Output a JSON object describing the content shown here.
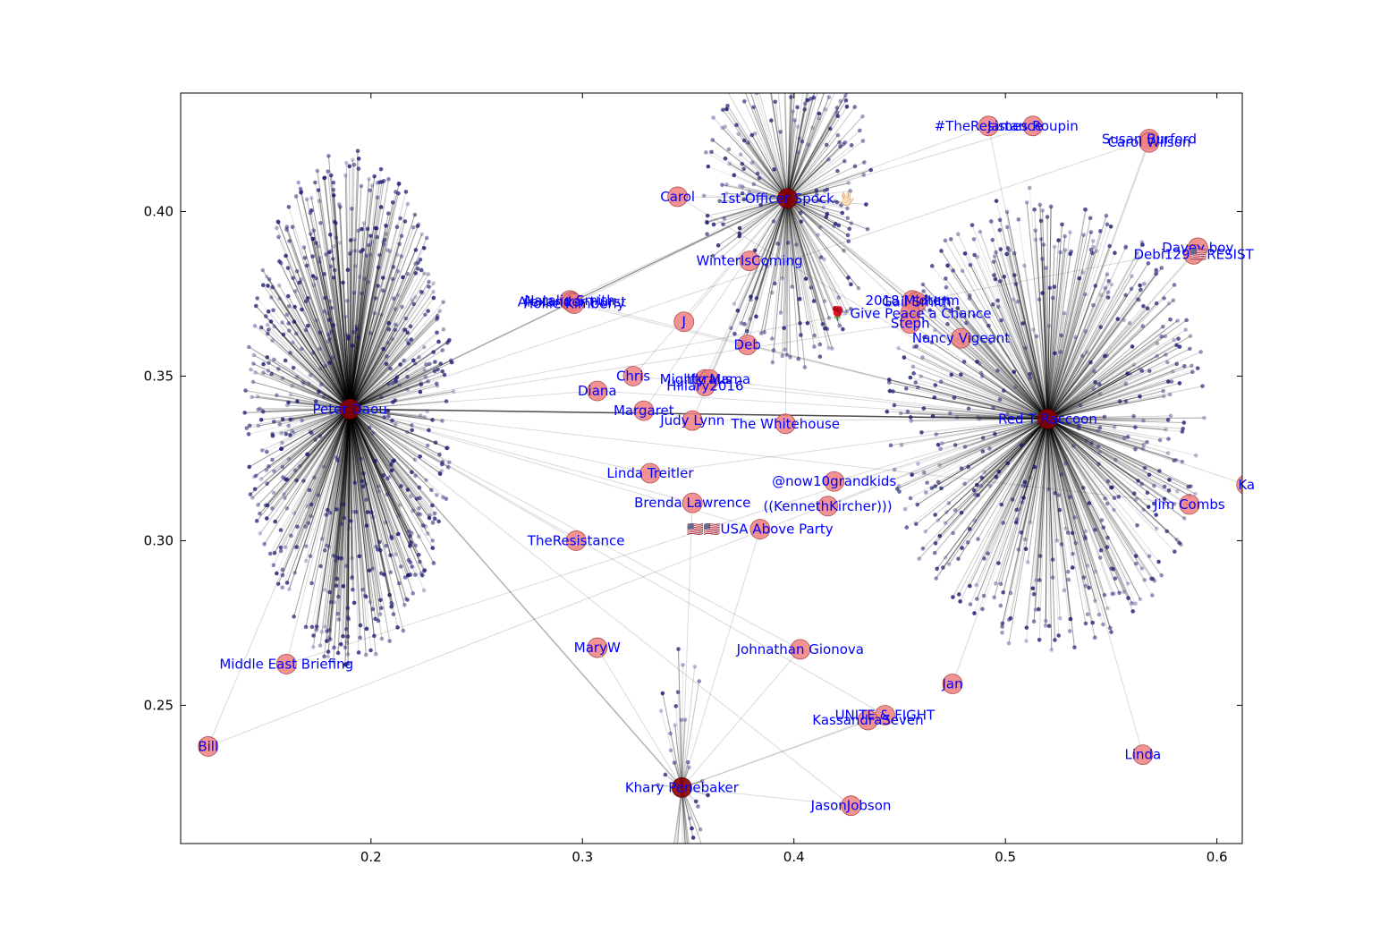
{
  "chart_data": {
    "type": "scatter",
    "title": "",
    "xlabel": "",
    "ylabel": "",
    "xlim": [
      0.11,
      0.612
    ],
    "ylim": [
      0.208,
      0.436
    ],
    "grid": false,
    "x_ticks": [
      "0.2",
      "0.3",
      "0.4",
      "0.5",
      "0.6"
    ],
    "y_ticks": [
      "0.25",
      "0.30",
      "0.35",
      "0.40"
    ],
    "colors": {
      "node_fill": "#f08080",
      "hub_fill": "#8b0000",
      "label": "#0000ff",
      "edge": "#000000",
      "leaf": "#191970"
    },
    "hubs": [
      {
        "name": "Peter Daou",
        "x": 0.19,
        "y": 0.34
      },
      {
        "name": "Red T Raccoon",
        "x": 0.52,
        "y": 0.337
      },
      {
        "name": "1st Officer Spock 🖖🏻",
        "x": 0.397,
        "y": 0.404
      },
      {
        "name": "Khary Penebaker",
        "x": 0.347,
        "y": 0.225
      }
    ],
    "nodes": [
      {
        "name": "Carol",
        "x": 0.345,
        "y": 0.4045
      },
      {
        "name": "WinterIsComing",
        "x": 0.379,
        "y": 0.385
      },
      {
        "name": "#TheResistance",
        "x": 0.492,
        "y": 0.426
      },
      {
        "name": "James Roupin",
        "x": 0.513,
        "y": 0.426
      },
      {
        "name": "Susan Burford",
        "x": 0.568,
        "y": 0.422
      },
      {
        "name": "Carol Wilson",
        "x": 0.568,
        "y": 0.421
      },
      {
        "name": "Davey boy",
        "x": 0.591,
        "y": 0.389
      },
      {
        "name": "Debi129🇺🇸RESIST",
        "x": 0.589,
        "y": 0.387
      },
      {
        "name": "Natalie Smith",
        "x": 0.294,
        "y": 0.373
      },
      {
        "name": "Alexander Hurst",
        "x": 0.295,
        "y": 0.3725
      },
      {
        "name": "Hollie Kimberly",
        "x": 0.296,
        "y": 0.372
      },
      {
        "name": "J",
        "x": 0.348,
        "y": 0.3665
      },
      {
        "name": "Deb",
        "x": 0.378,
        "y": 0.3595
      },
      {
        "name": "2018 Midterm",
        "x": 0.456,
        "y": 0.373
      },
      {
        "name": "Gail Smith",
        "x": 0.458,
        "y": 0.3725
      },
      {
        "name": "🌹 Give Peace a Chance",
        "x": 0.455,
        "y": 0.369
      },
      {
        "name": "Steph",
        "x": 0.455,
        "y": 0.366
      },
      {
        "name": "Nancy Vigeant",
        "x": 0.479,
        "y": 0.3615
      },
      {
        "name": "Chris",
        "x": 0.324,
        "y": 0.35
      },
      {
        "name": "Mighty Mama",
        "x": 0.358,
        "y": 0.349
      },
      {
        "name": "lfkraus",
        "x": 0.36,
        "y": 0.349
      },
      {
        "name": "Hillary2016",
        "x": 0.358,
        "y": 0.347
      },
      {
        "name": "Diana",
        "x": 0.307,
        "y": 0.3455
      },
      {
        "name": "Margaret",
        "x": 0.329,
        "y": 0.3395
      },
      {
        "name": "Judy Lynn",
        "x": 0.352,
        "y": 0.3365
      },
      {
        "name": "The Whitehouse",
        "x": 0.396,
        "y": 0.3355
      },
      {
        "name": "Linda Treitler",
        "x": 0.332,
        "y": 0.3205
      },
      {
        "name": "@now10grandkids",
        "x": 0.419,
        "y": 0.318
      },
      {
        "name": "Brenda Lawrence",
        "x": 0.352,
        "y": 0.3115
      },
      {
        "name": "((KennethKircher)))",
        "x": 0.416,
        "y": 0.3105
      },
      {
        "name": "🇺🇸🇺🇸USA Above Party",
        "x": 0.384,
        "y": 0.3035
      },
      {
        "name": "TheResistance",
        "x": 0.297,
        "y": 0.3
      },
      {
        "name": "Jim Combs",
        "x": 0.587,
        "y": 0.311
      },
      {
        "name": "Ka",
        "x": 0.614,
        "y": 0.317
      },
      {
        "name": "Middle East Briefing",
        "x": 0.16,
        "y": 0.2625
      },
      {
        "name": "MaryW",
        "x": 0.307,
        "y": 0.2675
      },
      {
        "name": "Johnathan Gionova",
        "x": 0.403,
        "y": 0.267
      },
      {
        "name": "Jan",
        "x": 0.475,
        "y": 0.2565
      },
      {
        "name": "UNITE & FIGHT",
        "x": 0.443,
        "y": 0.247
      },
      {
        "name": "KassandraSeven",
        "x": 0.435,
        "y": 0.2455
      },
      {
        "name": "Bill",
        "x": 0.123,
        "y": 0.2375
      },
      {
        "name": "Linda",
        "x": 0.565,
        "y": 0.235
      },
      {
        "name": "JasonJobson",
        "x": 0.427,
        "y": 0.2195
      }
    ]
  }
}
